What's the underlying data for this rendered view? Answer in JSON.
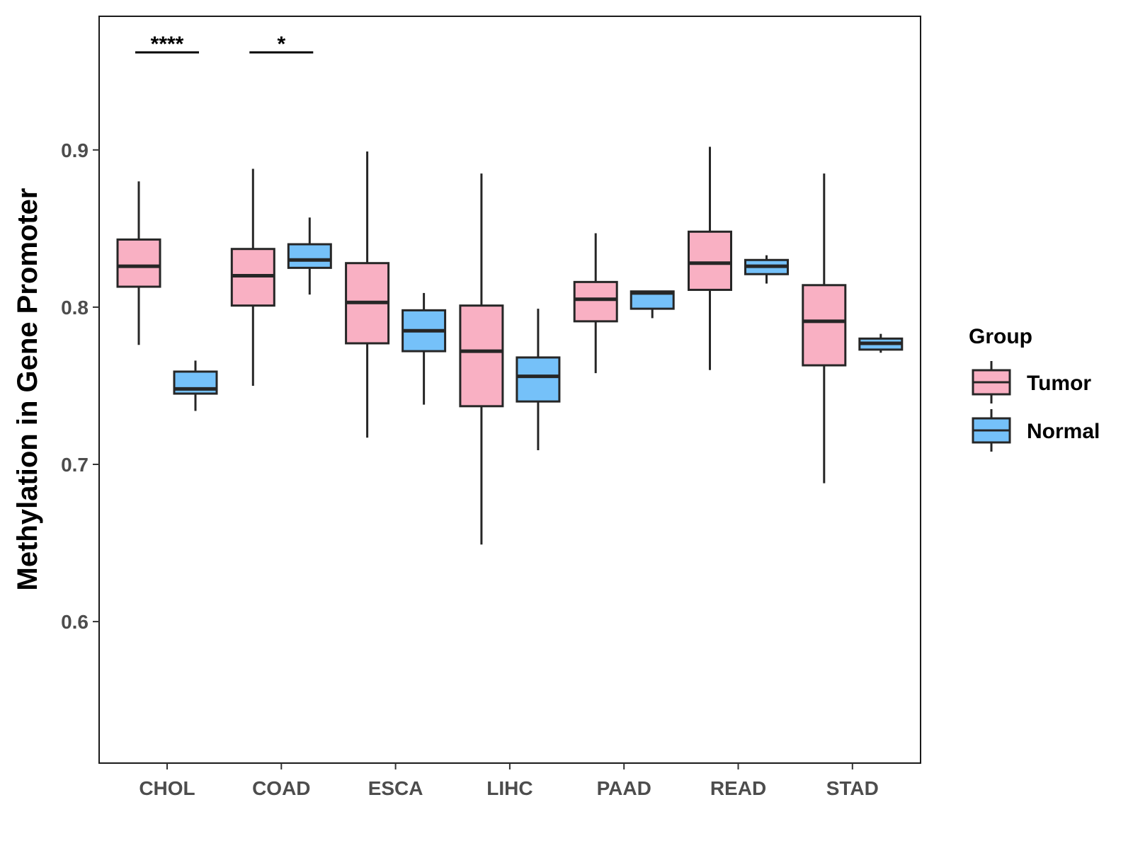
{
  "chart_data": {
    "type": "boxplot",
    "title": "",
    "xlabel": "",
    "ylabel": "Methylation in Gene Promoter",
    "ylim": [
      0.51,
      0.985
    ],
    "yticks": [
      0.6,
      0.7,
      0.8,
      0.9
    ],
    "ytick_labels": [
      "0.6",
      "0.7",
      "0.8",
      "0.9"
    ],
    "categories": [
      "CHOL",
      "COAD",
      "ESCA",
      "LIHC",
      "PAAD",
      "READ",
      "STAD"
    ],
    "legend": {
      "title": "Group",
      "position": "right",
      "entries": [
        {
          "name": "Tumor",
          "color": "#F9B0C3"
        },
        {
          "name": "Normal",
          "color": "#75C1F9"
        }
      ]
    },
    "series": [
      {
        "name": "Tumor",
        "color": "#F9B0C3",
        "boxes": [
          {
            "category": "CHOL",
            "min": 0.776,
            "q1": 0.813,
            "median": 0.826,
            "q3": 0.843,
            "max": 0.88
          },
          {
            "category": "COAD",
            "min": 0.75,
            "q1": 0.801,
            "median": 0.82,
            "q3": 0.837,
            "max": 0.888
          },
          {
            "category": "ESCA",
            "min": 0.717,
            "q1": 0.777,
            "median": 0.803,
            "q3": 0.828,
            "max": 0.899
          },
          {
            "category": "LIHC",
            "min": 0.649,
            "q1": 0.737,
            "median": 0.772,
            "q3": 0.801,
            "max": 0.885
          },
          {
            "category": "PAAD",
            "min": 0.758,
            "q1": 0.791,
            "median": 0.805,
            "q3": 0.816,
            "max": 0.847
          },
          {
            "category": "READ",
            "min": 0.76,
            "q1": 0.811,
            "median": 0.828,
            "q3": 0.848,
            "max": 0.902
          },
          {
            "category": "STAD",
            "min": 0.688,
            "q1": 0.763,
            "median": 0.791,
            "q3": 0.814,
            "max": 0.885
          }
        ]
      },
      {
        "name": "Normal",
        "color": "#75C1F9",
        "boxes": [
          {
            "category": "CHOL",
            "min": 0.734,
            "q1": 0.745,
            "median": 0.748,
            "q3": 0.759,
            "max": 0.766
          },
          {
            "category": "COAD",
            "min": 0.808,
            "q1": 0.825,
            "median": 0.83,
            "q3": 0.84,
            "max": 0.857
          },
          {
            "category": "ESCA",
            "min": 0.738,
            "q1": 0.772,
            "median": 0.785,
            "q3": 0.798,
            "max": 0.809
          },
          {
            "category": "LIHC",
            "min": 0.709,
            "q1": 0.74,
            "median": 0.756,
            "q3": 0.768,
            "max": 0.799
          },
          {
            "category": "PAAD",
            "min": 0.793,
            "q1": 0.799,
            "median": 0.809,
            "q3": 0.81,
            "max": 0.81
          },
          {
            "category": "READ",
            "min": 0.815,
            "q1": 0.821,
            "median": 0.826,
            "q3": 0.83,
            "max": 0.833
          },
          {
            "category": "STAD",
            "min": 0.771,
            "q1": 0.773,
            "median": 0.777,
            "q3": 0.78,
            "max": 0.783
          }
        ]
      }
    ],
    "annotations": [
      {
        "category": "CHOL",
        "label": "****"
      },
      {
        "category": "COAD",
        "label": "*"
      }
    ]
  }
}
